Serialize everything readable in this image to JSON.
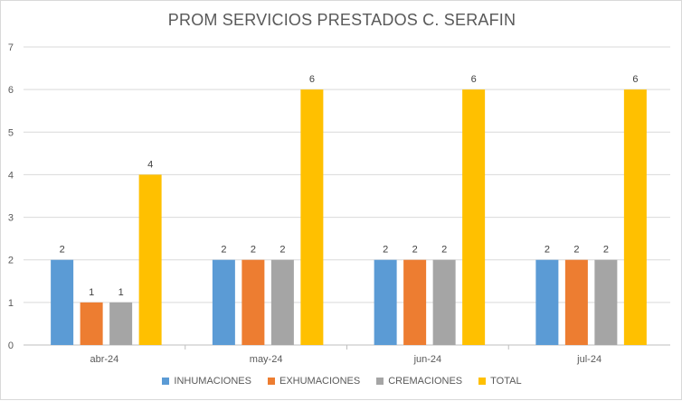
{
  "chart_data": {
    "type": "bar",
    "title": "PROM SERVICIOS PRESTADOS C. SERAFIN",
    "categories": [
      "abr-24",
      "may-24",
      "jun-24",
      "jul-24"
    ],
    "series": [
      {
        "name": "INHUMACIONES",
        "color": "#5b9bd5",
        "values": [
          2,
          2,
          2,
          2
        ]
      },
      {
        "name": "EXHUMACIONES",
        "color": "#ed7d31",
        "values": [
          1,
          2,
          2,
          2
        ]
      },
      {
        "name": "CREMACIONES",
        "color": "#a5a5a5",
        "values": [
          1,
          2,
          2,
          2
        ]
      },
      {
        "name": "TOTAL",
        "color": "#ffc000",
        "values": [
          4,
          6,
          6,
          6
        ]
      }
    ],
    "ylim": [
      0,
      7
    ],
    "yticks": [
      0,
      1,
      2,
      3,
      4,
      5,
      6,
      7
    ],
    "grid": true,
    "legend": "bottom",
    "xlabel": "",
    "ylabel": ""
  }
}
